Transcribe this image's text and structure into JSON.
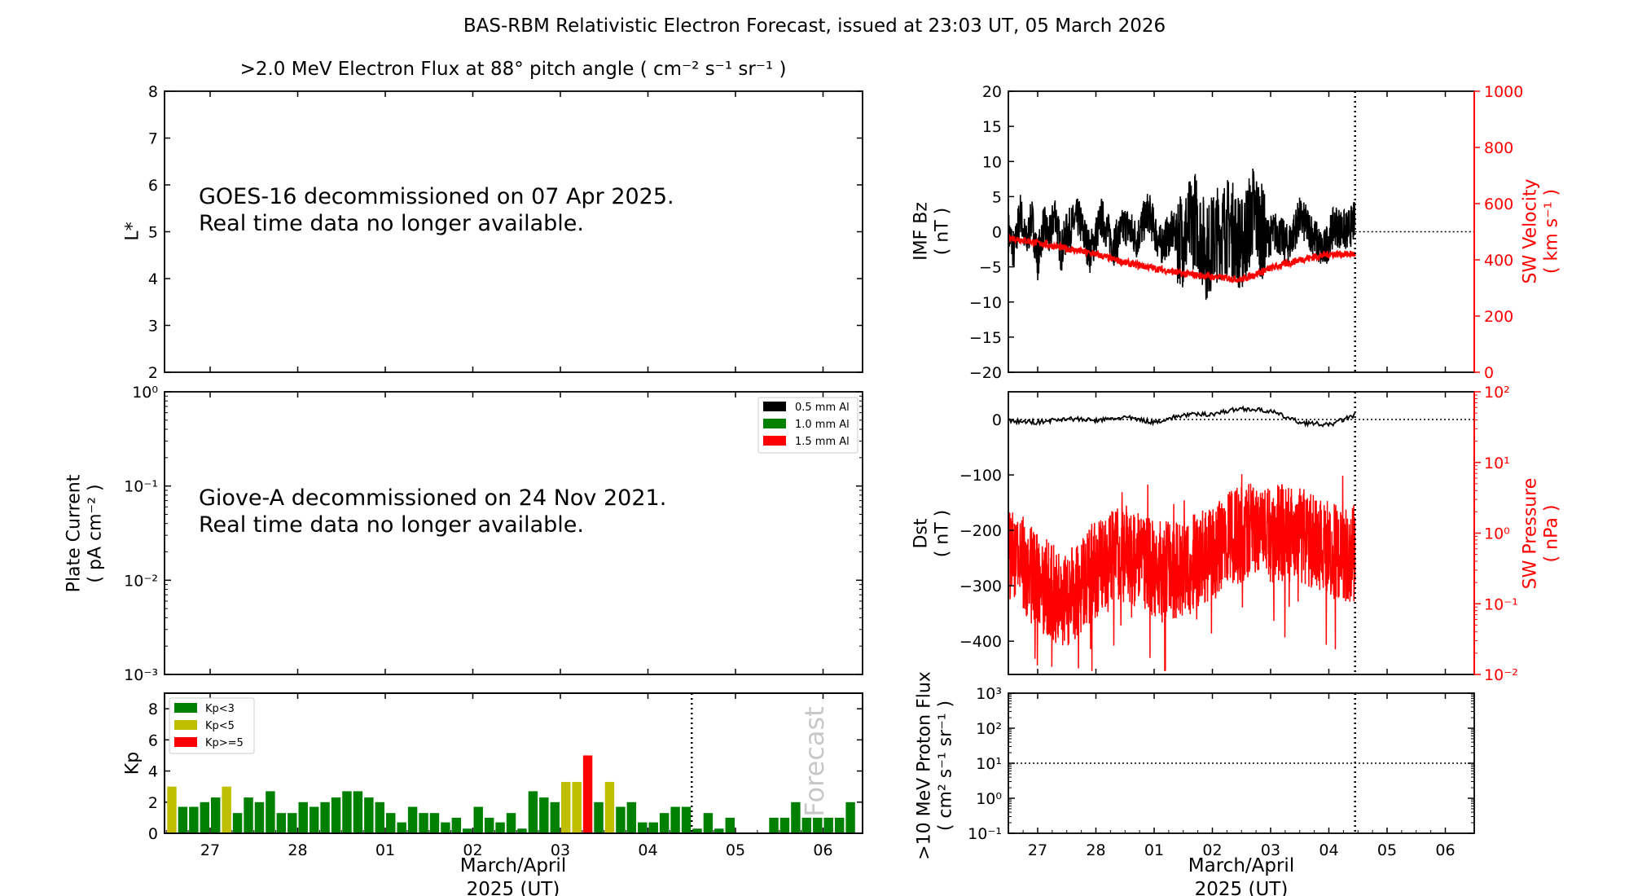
{
  "figure_title": "BAS-RBM Relativistic Electron Forecast, issued at 23:03 UT, 05 March 2026",
  "colors": {
    "black": "#000000",
    "red": "#ff0000",
    "green": "#008000",
    "olive": "#bfbf00",
    "forecast_text": "#c8c8c8"
  },
  "chart_data": [
    {
      "id": "flux",
      "type": "heatmap",
      "title": ">2.0 MeV Electron Flux at 88° pitch angle ( cm⁻² s⁻¹ sr⁻¹ )",
      "ylabel": "L*",
      "ylim": [
        2,
        8
      ],
      "yticks": [
        "2",
        "3",
        "4",
        "5",
        "6",
        "7",
        "8"
      ],
      "annotation": [
        "GOES-16 decommissioned on 07 Apr 2025.",
        "Real time data no longer available."
      ],
      "grid": false
    },
    {
      "id": "plate",
      "type": "line",
      "ylabel": [
        "Plate Current",
        "( pA cm⁻² )"
      ],
      "yscale": "log",
      "ylim": [
        0.001,
        1
      ],
      "yticks": [
        "10⁻³",
        "10⁻²",
        "10⁻¹",
        "10⁰"
      ],
      "legend": {
        "placement": "top-right",
        "entries": [
          {
            "label": "0.5 mm Al",
            "color": "#000000"
          },
          {
            "label": "1.0 mm Al",
            "color": "#008000"
          },
          {
            "label": "1.5 mm Al",
            "color": "#ff0000"
          }
        ]
      },
      "annotation": [
        "Giove-A decommissioned on 24 Nov 2021.",
        "Real time data no longer available."
      ]
    },
    {
      "id": "kp",
      "type": "bar",
      "ylabel": "Kp",
      "ylim": [
        0,
        9
      ],
      "yticks": [
        "0",
        "2",
        "4",
        "6",
        "8"
      ],
      "xlabel": [
        "March/April",
        "2025 (UT)"
      ],
      "xticks": [
        "27",
        "28",
        "01",
        "02",
        "03",
        "04",
        "05",
        "06"
      ],
      "legend": {
        "placement": "top-left",
        "entries": [
          {
            "label": "Kp<3",
            "color": "#008000"
          },
          {
            "label": "Kp<5",
            "color": "#bfbf00"
          },
          {
            "label": "Kp>=5",
            "color": "#ff0000"
          }
        ]
      },
      "forecast_label": "Forecast",
      "values": [
        3.0,
        1.7,
        1.7,
        2.0,
        2.3,
        3.0,
        1.3,
        2.3,
        2.0,
        2.7,
        1.3,
        1.3,
        2.0,
        1.7,
        2.0,
        2.3,
        2.7,
        2.7,
        2.3,
        2.0,
        1.3,
        0.7,
        1.7,
        1.3,
        1.3,
        0.7,
        1.0,
        0.3,
        1.7,
        1.0,
        0.7,
        1.3,
        0.3,
        2.7,
        2.3,
        2.0,
        3.3,
        3.3,
        5.0,
        2.0,
        3.3,
        1.7,
        2.0,
        0.7,
        0.7,
        1.3,
        1.7,
        1.7,
        0.3,
        1.3,
        0.3,
        1.0,
        0,
        0,
        0,
        1.0,
        1.0,
        2.0,
        1.0,
        1.0,
        1.0,
        1.0,
        2.0
      ]
    },
    {
      "id": "imf",
      "type": "line",
      "ylabel": [
        "IMF Bz",
        "( nT )"
      ],
      "ylim": [
        -20,
        20
      ],
      "yticks": [
        "20",
        "15",
        "10",
        "5",
        "0",
        "−5",
        "−10",
        "−15",
        "−20"
      ],
      "ylabel_right": [
        "SW Velocity",
        "( km s⁻¹ )"
      ],
      "ylim_right": [
        0,
        1000
      ],
      "yticks_right": [
        "1000",
        "800",
        "600",
        "400",
        "200",
        "0"
      ],
      "series": [
        {
          "color": "#000000",
          "x": [
            0,
            0.1,
            0.2,
            0.3,
            0.4,
            0.5,
            0.6,
            0.7,
            0.8,
            0.9,
            1.0,
            1.2,
            1.4,
            1.6,
            1.8,
            2.0,
            2.2,
            2.4,
            2.6,
            2.8,
            3.0,
            3.2,
            3.4,
            3.6,
            3.8,
            4.0,
            4.2,
            4.4,
            4.6,
            4.8,
            5.0,
            5.2,
            5.4,
            5.6,
            5.8,
            6.0,
            6.2,
            6.4,
            6.6,
            6.8,
            7.0
          ],
          "y": [
            0,
            -3,
            3,
            -2,
            2,
            -4,
            1,
            -1,
            3,
            -3,
            0,
            2,
            -3,
            2,
            -2,
            1,
            -1,
            3,
            -2,
            0,
            -1,
            2,
            -3,
            0,
            1,
            -2,
            3,
            -1,
            0,
            -2,
            2,
            0,
            -3,
            1,
            0,
            2,
            -1,
            1,
            0,
            2,
            1
          ]
        },
        {
          "color": "#ff0000",
          "x": [
            0,
            0.5,
            1.0,
            1.5,
            2.0,
            2.5,
            3.0,
            3.5,
            4.0,
            4.5,
            5.0,
            5.5,
            6.0,
            6.5,
            7.0
          ],
          "y": [
            480,
            460,
            440,
            420,
            390,
            370,
            350,
            340,
            330,
            370,
            400,
            420,
            420,
            400,
            360
          ]
        }
      ]
    },
    {
      "id": "dst",
      "type": "line",
      "ylabel": [
        "Dst",
        "( nT )"
      ],
      "ylim": [
        -460,
        50
      ],
      "yticks": [
        "0",
        "−100",
        "−200",
        "−300",
        "−400"
      ],
      "ylabel_right": [
        "SW Pressure",
        "( nPa )"
      ],
      "yscale_right": "log",
      "ylim_right": [
        0.01,
        100
      ],
      "yticks_right": [
        "10⁻²",
        "10⁻¹",
        "10⁰",
        "10¹",
        "10²"
      ],
      "series": [
        {
          "color": "#000000",
          "x": [
            0,
            0.5,
            1.0,
            1.5,
            2.0,
            2.5,
            3.0,
            3.5,
            4.0,
            4.5,
            5.0,
            5.5,
            6.0,
            6.5,
            7.0
          ],
          "y": [
            -3,
            -5,
            2,
            -2,
            4,
            -5,
            8,
            10,
            20,
            15,
            -5,
            -10,
            10,
            0,
            22
          ]
        },
        {
          "color": "#ff0000",
          "x": [
            0,
            0.5,
            1.0,
            1.5,
            2.0,
            2.5,
            3.0,
            3.5,
            4.0,
            4.5,
            5.0,
            5.5,
            6.0,
            6.5,
            7.0
          ],
          "y": [
            0.5,
            0.2,
            0.1,
            0.3,
            0.5,
            0.3,
            0.3,
            0.5,
            1.0,
            1.0,
            1.0,
            0.6,
            0.5,
            0.4,
            0.4
          ]
        }
      ]
    },
    {
      "id": "proton",
      "type": "line",
      "ylabel": [
        ">10 MeV Proton Flux",
        "( cm² s⁻¹ sr⁻¹ )"
      ],
      "yscale": "log",
      "ylim": [
        0.1,
        1000
      ],
      "yticks": [
        "10⁻¹",
        "10⁰",
        "10¹",
        "10²",
        "10³"
      ],
      "threshold": 10,
      "xlabel": [
        "March/April",
        "2025 (UT)"
      ],
      "xticks": [
        "27",
        "28",
        "01",
        "02",
        "03",
        "04",
        "05",
        "06"
      ]
    }
  ]
}
